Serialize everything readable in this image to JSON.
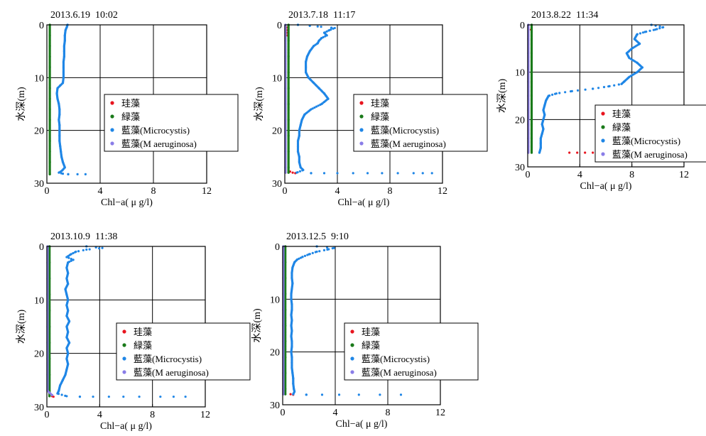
{
  "colors": {
    "diatom": "#e8141e",
    "green": "#1a7a1a",
    "cyano": "#1f86e6",
    "maeruginosa": "#8a7de8"
  },
  "chart_data": [
    {
      "type": "scatter",
      "title": "2013.6.19 10:02",
      "xlabel": "Chl−a( μ g/l)",
      "ylabel": "水深(m)",
      "xlim": [
        0,
        12
      ],
      "ylim": [
        30,
        0
      ],
      "xticks": [
        0,
        4,
        8,
        12
      ],
      "yticks": [
        0,
        10,
        20,
        30
      ],
      "grid": true,
      "legend_position": "center-right",
      "series": [
        {
          "name": "珪藻",
          "color_key": "diatom",
          "depth": [],
          "chl": []
        },
        {
          "name": "緑藻",
          "color_key": "green",
          "depth": [
            0,
            2,
            4,
            6,
            8,
            10,
            12,
            14,
            16,
            18,
            20,
            22,
            24,
            26,
            28.3
          ],
          "chl": [
            0.22,
            0.22,
            0.22,
            0.22,
            0.22,
            0.22,
            0.22,
            0.22,
            0.22,
            0.22,
            0.22,
            0.22,
            0.22,
            0.22,
            0.22
          ]
        },
        {
          "name": "藍藻(Microcystis)",
          "color_key": "cyano",
          "depth": [
            0,
            0.4,
            1,
            2,
            3,
            4,
            5,
            6,
            7,
            8,
            9,
            10,
            11,
            11.5,
            12,
            13,
            14,
            15,
            16,
            17,
            18,
            19,
            20,
            21,
            22,
            23,
            24,
            25,
            26,
            27,
            27.6,
            28,
            28.2,
            28.3,
            28.3,
            28.3
          ],
          "chl": [
            1.55,
            1.5,
            1.4,
            1.35,
            1.35,
            1.3,
            1.3,
            1.3,
            1.25,
            1.25,
            1.25,
            1.25,
            1.2,
            1.0,
            0.8,
            0.75,
            0.8,
            0.9,
            0.95,
            0.95,
            0.9,
            0.95,
            0.95,
            0.95,
            0.95,
            1.0,
            1.05,
            1.1,
            1.2,
            1.35,
            1.15,
            0.9,
            1.2,
            1.6,
            2.3,
            2.9
          ]
        },
        {
          "name": "藍藻(M aeruginosa)",
          "color_key": "maeruginosa",
          "depth": [],
          "chl": []
        }
      ]
    },
    {
      "type": "scatter",
      "title": "2013.7.18 11:17",
      "xlabel": "Chl−a( μ g/l)",
      "ylabel": "水深(m)",
      "xlim": [
        0,
        12
      ],
      "ylim": [
        30,
        0
      ],
      "xticks": [
        0,
        4,
        8,
        12
      ],
      "yticks": [
        0,
        10,
        20,
        30
      ],
      "grid": true,
      "legend_position": "center-right",
      "series": [
        {
          "name": "珪藻",
          "color_key": "diatom",
          "depth": [
            0.5,
            1,
            1.5,
            2,
            27.8,
            28,
            28.1
          ],
          "chl": [
            0.15,
            0.2,
            0.15,
            0.2,
            0.4,
            0.6,
            0.8
          ]
        },
        {
          "name": "緑藻",
          "color_key": "green",
          "depth": [
            0,
            3,
            6,
            9,
            12,
            15,
            18,
            21,
            24,
            27,
            28
          ],
          "chl": [
            0.28,
            0.28,
            0.28,
            0.28,
            0.28,
            0.28,
            0.28,
            0.28,
            0.28,
            0.28,
            0.28
          ]
        },
        {
          "name": "藍藻(Microcystis)",
          "color_key": "cyano",
          "depth": [
            0,
            0.3,
            0.6,
            1,
            1.5,
            2,
            2.5,
            3,
            3.5,
            4,
            5,
            6,
            7,
            8,
            9,
            10,
            11,
            12,
            13,
            14,
            15,
            16,
            17,
            18,
            19,
            20,
            21,
            22,
            23,
            24,
            25,
            26,
            27,
            27.5,
            28,
            28.1,
            28.1,
            28.1,
            28.1,
            28.1,
            28.1,
            28.1,
            28.1,
            28.1,
            28.1
          ],
          "chl": [
            1.0,
            2.5,
            3.8,
            3.4,
            3.0,
            3.2,
            2.8,
            2.6,
            2.5,
            2.2,
            1.9,
            1.7,
            1.6,
            1.6,
            1.6,
            1.8,
            2.2,
            2.6,
            3.0,
            3.3,
            2.8,
            2.0,
            1.5,
            1.3,
            1.2,
            1.1,
            1.1,
            1.0,
            1.0,
            1.0,
            1.1,
            1.1,
            1.2,
            1.4,
            0.9,
            2.0,
            3.0,
            4.0,
            5.2,
            6.3,
            7.4,
            8.6,
            9.8,
            10.5,
            11.2
          ]
        },
        {
          "name": "藍藻(M aeruginosa)",
          "color_key": "maeruginosa",
          "depth": [
            0,
            3,
            6,
            9,
            12,
            15,
            18,
            21,
            24,
            27,
            28
          ],
          "chl": [
            0.05,
            0.05,
            0.05,
            0.05,
            0.05,
            0.05,
            0.05,
            0.05,
            0.05,
            0.05,
            0.05
          ]
        }
      ]
    },
    {
      "type": "scatter",
      "title": "2013.8.22 11:34",
      "xlabel": "Chl−a( μ g/l)",
      "ylabel": "水深(m)",
      "xlim": [
        0,
        12
      ],
      "ylim": [
        30,
        0
      ],
      "xticks": [
        0,
        4,
        8,
        12
      ],
      "yticks": [
        0,
        10,
        20,
        30
      ],
      "grid": true,
      "legend_position": "right",
      "series": [
        {
          "name": "珪藻",
          "color_key": "diatom",
          "depth": [
            0.5,
            1,
            1.5,
            27,
            27,
            27,
            27,
            27,
            27,
            27
          ],
          "chl": [
            0.3,
            0.25,
            0.3,
            3.2,
            3.8,
            4.4,
            5.0,
            5.5,
            6.0,
            6.5
          ]
        },
        {
          "name": "緑藻",
          "color_key": "green",
          "depth": [
            0,
            3,
            6,
            9,
            12,
            15,
            18,
            21,
            24,
            27
          ],
          "chl": [
            0.3,
            0.3,
            0.3,
            0.3,
            0.3,
            0.3,
            0.3,
            0.3,
            0.3,
            0.3
          ]
        },
        {
          "name": "藍藻(Microcystis)",
          "color_key": "cyano",
          "depth": [
            0,
            0.5,
            1,
            1.5,
            2,
            3,
            4,
            5,
            6,
            7,
            8,
            9,
            10,
            11,
            12,
            12.5,
            13,
            13.5,
            14,
            14.5,
            15,
            16,
            17,
            18,
            19,
            20,
            21,
            22,
            23,
            24,
            25,
            26,
            27,
            27,
            27
          ],
          "chl": [
            9.5,
            10.4,
            9.8,
            9.0,
            8.4,
            8.2,
            8.6,
            8.0,
            7.6,
            7.8,
            8.4,
            8.8,
            8.4,
            7.8,
            7.4,
            7.2,
            6.2,
            5.0,
            3.4,
            2.2,
            1.6,
            1.4,
            1.3,
            1.2,
            1.3,
            1.2,
            1.1,
            1.2,
            1.1,
            1.0,
            1.0,
            1.0,
            0.9,
            7.5,
            9.8
          ]
        },
        {
          "name": "藍藻(M aeruginosa)",
          "color_key": "maeruginosa",
          "depth": [
            0,
            3,
            6,
            9,
            12,
            15,
            18,
            21,
            24,
            27
          ],
          "chl": [
            0.05,
            0.05,
            0.05,
            0.05,
            0.05,
            0.05,
            0.05,
            0.05,
            0.05,
            0.05
          ]
        }
      ]
    },
    {
      "type": "scatter",
      "title": "2013.10.9 11:38",
      "xlabel": "Chl−a( μ g/l)",
      "ylabel": "水深(m)",
      "xlim": [
        0,
        12
      ],
      "ylim": [
        30,
        0
      ],
      "xticks": [
        0,
        4,
        8,
        12
      ],
      "yticks": [
        0,
        10,
        20,
        30
      ],
      "grid": true,
      "legend_position": "center-right",
      "series": [
        {
          "name": "珪藻",
          "color_key": "diatom",
          "depth": [
            27.8,
            28,
            28.1
          ],
          "chl": [
            0.2,
            0.4,
            0.5
          ]
        },
        {
          "name": "緑藻",
          "color_key": "green",
          "depth": [
            0,
            3,
            6,
            9,
            12,
            15,
            18,
            21,
            24,
            27,
            28
          ],
          "chl": [
            0.2,
            0.2,
            0.2,
            0.2,
            0.2,
            0.2,
            0.2,
            0.2,
            0.2,
            0.2,
            0.2
          ]
        },
        {
          "name": "藍藻(Microcystis)",
          "color_key": "cyano",
          "depth": [
            0,
            0.3,
            0.6,
            1,
            1.5,
            2,
            2.5,
            3,
            4,
            5,
            6,
            7,
            8,
            9,
            10,
            11,
            12,
            13,
            14,
            15,
            16,
            17,
            18,
            19,
            20,
            21,
            22,
            23,
            24,
            25,
            26,
            27,
            27.5,
            28,
            28.1,
            28.1,
            28.1,
            28.1,
            28.1,
            28.1,
            28.1,
            28.1
          ],
          "chl": [
            3.0,
            4.2,
            3.0,
            2.2,
            1.8,
            1.5,
            2.0,
            1.6,
            1.5,
            1.6,
            1.5,
            1.6,
            1.4,
            1.5,
            1.6,
            1.5,
            1.6,
            1.5,
            1.7,
            1.5,
            1.6,
            1.5,
            1.7,
            1.5,
            1.6,
            1.5,
            1.6,
            1.5,
            1.4,
            1.2,
            1.0,
            0.9,
            0.8,
            1.5,
            2.5,
            3.5,
            4.7,
            5.8,
            7.0,
            8.6,
            9.6,
            10.5
          ]
        },
        {
          "name": "藍藻(M aeruginosa)",
          "color_key": "maeruginosa",
          "depth": [
            0,
            3,
            6,
            9,
            12,
            15,
            18,
            21,
            24,
            27,
            27.8
          ],
          "chl": [
            0.05,
            0.05,
            0.05,
            0.05,
            0.05,
            0.05,
            0.05,
            0.05,
            0.05,
            0.05,
            0.4
          ]
        }
      ]
    },
    {
      "type": "scatter",
      "title": "2013.12.5 9:10",
      "xlabel": "Chl−a( μ g/l)",
      "ylabel": "水深(m)",
      "xlim": [
        0,
        12
      ],
      "ylim": [
        30,
        0
      ],
      "xticks": [
        0,
        4,
        8,
        12
      ],
      "yticks": [
        0,
        10,
        20,
        30
      ],
      "grid": true,
      "legend_position": "center-right",
      "series": [
        {
          "name": "珪藻",
          "color_key": "diatom",
          "depth": [
            0.3,
            28,
            28.1
          ],
          "chl": [
            0.1,
            0.6,
            0.8
          ]
        },
        {
          "name": "緑藻",
          "color_key": "green",
          "depth": [
            0,
            3,
            6,
            9,
            12,
            15,
            18,
            21,
            24,
            27,
            28
          ],
          "chl": [
            0.2,
            0.2,
            0.2,
            0.2,
            0.2,
            0.2,
            0.2,
            0.2,
            0.2,
            0.2,
            0.2
          ]
        },
        {
          "name": "藍藻(Microcystis)",
          "color_key": "cyano",
          "depth": [
            0,
            0.3,
            0.6,
            1,
            1.5,
            2,
            2.5,
            3,
            4,
            5,
            6,
            7,
            8,
            9,
            10,
            11,
            12,
            13,
            14,
            15,
            16,
            17,
            18,
            19,
            20,
            21,
            22,
            23,
            24,
            25,
            26,
            27,
            27.5,
            28,
            28.1,
            28.1,
            28.1,
            28.1,
            28.1,
            28.1
          ],
          "chl": [
            2.6,
            3.9,
            3.4,
            2.6,
            2.0,
            1.5,
            1.1,
            0.9,
            0.75,
            0.7,
            0.7,
            0.75,
            0.7,
            0.65,
            0.65,
            0.7,
            0.7,
            0.65,
            0.7,
            0.65,
            0.7,
            0.65,
            0.7,
            0.7,
            0.65,
            0.7,
            0.7,
            0.7,
            0.75,
            0.8,
            0.8,
            0.85,
            0.9,
            0.8,
            1.8,
            3.0,
            4.3,
            5.8,
            7.4,
            9.0
          ]
        },
        {
          "name": "藍藻(M aeruginosa)",
          "color_key": "maeruginosa",
          "depth": [
            0,
            3,
            6,
            9,
            12,
            15,
            18,
            21,
            24,
            27,
            28
          ],
          "chl": [
            0.05,
            0.05,
            0.05,
            0.05,
            0.05,
            0.05,
            0.05,
            0.05,
            0.05,
            0.05,
            0.05
          ]
        }
      ]
    }
  ]
}
